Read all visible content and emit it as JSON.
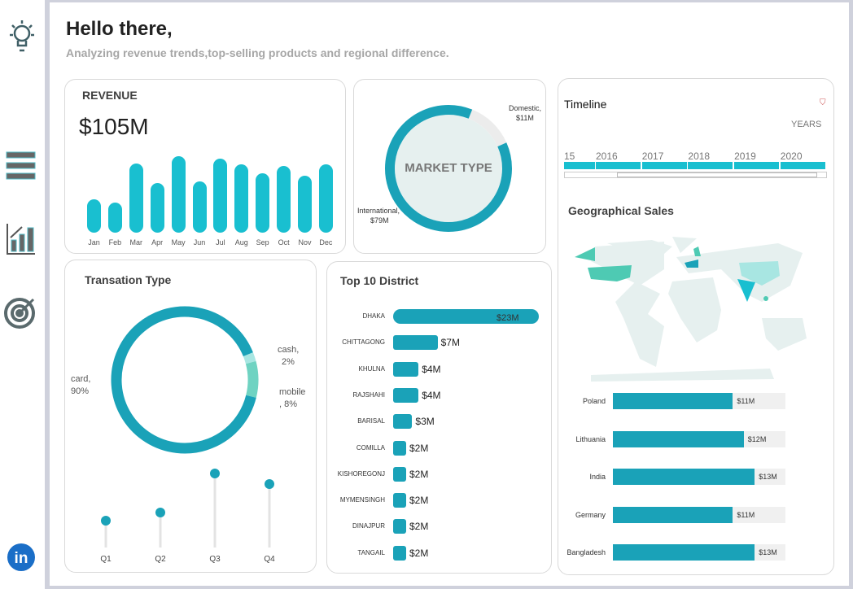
{
  "header": {
    "title": "Hello there,",
    "subtitle": "Analyzing revenue trends,top-selling products and regional difference."
  },
  "sidebar": {
    "icons": [
      "lightbulb-icon",
      "menu-icon",
      "chart-growth-icon",
      "target-icon",
      "linkedin-icon"
    ],
    "linkedin_label": "in"
  },
  "colors": {
    "accent": "#1aa2b8",
    "bar": "#19bfd0",
    "mint": "#4ecab3",
    "light": "#e6f0ef",
    "china": "#a8e6e2"
  },
  "revenue": {
    "title": "REVENUE",
    "total": "$105M",
    "chart_data": {
      "type": "bar",
      "categories": [
        "Jan",
        "Feb",
        "Mar",
        "Apr",
        "May",
        "Jun",
        "Jul",
        "Aug",
        "Sep",
        "Oct",
        "Nov",
        "Dec"
      ],
      "values": [
        5.0,
        4.5,
        10.3,
        7.4,
        11.4,
        7.7,
        11.0,
        10.2,
        8.8,
        10.0,
        8.5,
        10.2
      ]
    }
  },
  "market": {
    "title": "MARKET TYPE",
    "domestic_label": "Domestic,",
    "domestic_value": "$11M",
    "international_label": "International,",
    "international_value": "$79M",
    "chart_data": {
      "type": "pie",
      "categories": [
        "Domestic",
        "International"
      ],
      "values": [
        11,
        79
      ]
    }
  },
  "timeline": {
    "title": "Timeline",
    "unit": "YEARS",
    "years": [
      "15",
      "2016",
      "2017",
      "2018",
      "2019",
      "2020"
    ]
  },
  "geo": {
    "title": "Geographical Sales",
    "chart_data": {
      "type": "bar",
      "orientation": "horizontal",
      "categories": [
        "Poland",
        "Lithuania",
        "India",
        "Germany",
        "Bangladesh"
      ],
      "values": [
        11,
        12,
        13,
        11,
        13
      ],
      "labels": [
        "$11M",
        "$12M",
        "$13M",
        "$11M",
        "$13M"
      ]
    }
  },
  "transaction": {
    "title": "Transation Type",
    "card_label": "card,",
    "card_pct": "90%",
    "cash_label": "cash,",
    "cash_pct": "2%",
    "mobile_label": "mobile",
    "mobile_pct": ", 8%",
    "chart_data": {
      "type": "pie",
      "categories": [
        "card",
        "cash",
        "mobile"
      ],
      "values": [
        90,
        2,
        8
      ]
    },
    "quarters": {
      "type": "scatter",
      "categories": [
        "Q1",
        "Q2",
        "Q3",
        "Q4"
      ],
      "values": [
        33,
        43,
        91,
        78
      ]
    }
  },
  "district": {
    "title": "Top 10 District",
    "chart_data": {
      "type": "bar",
      "orientation": "horizontal",
      "categories": [
        "DHAKA",
        "CHITTAGONG",
        "KHULNA",
        "RAJSHAHI",
        "BARISAL",
        "COMILLA",
        "KISHOREGONJ",
        "MYMENSINGH",
        "DINAJPUR",
        "TANGAIL"
      ],
      "values": [
        23,
        7,
        4,
        4,
        3,
        2,
        2,
        2,
        2,
        2
      ],
      "labels": [
        "$23M",
        "$7M",
        "$4M",
        "$4M",
        "$3M",
        "$2M",
        "$2M",
        "$2M",
        "$2M",
        "$2M"
      ]
    }
  }
}
